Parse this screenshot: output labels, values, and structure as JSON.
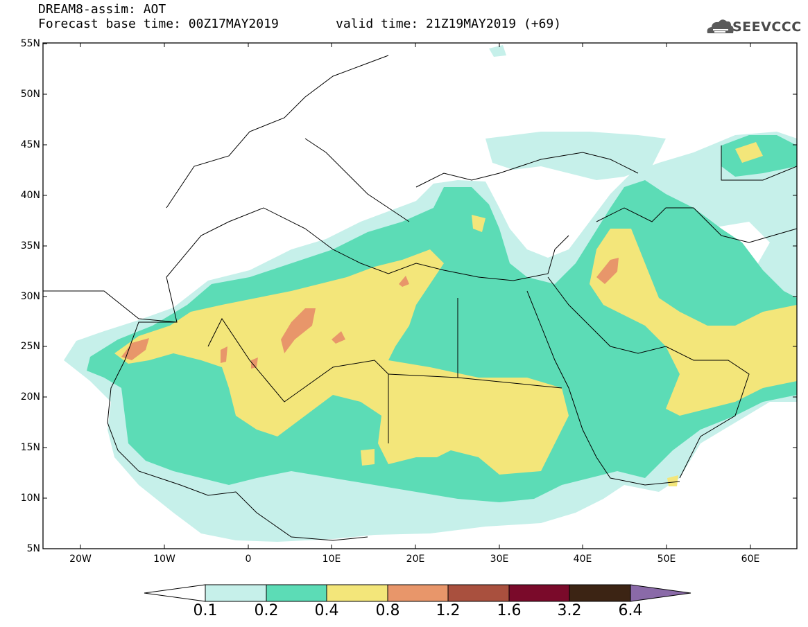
{
  "header": {
    "title": "DREAM8-assim: AOT",
    "base_time": "Forecast base time: 00Z17MAY2019",
    "valid_time": "valid time: 21Z19MAY2019 (+69)"
  },
  "logo": {
    "text": "SEEVCCC",
    "icon": "cloud-icon"
  },
  "map": {
    "projection": "latitude-longitude",
    "lon_range": [
      -25,
      65
    ],
    "lat_range": [
      5,
      55
    ],
    "lat_labels": [
      "55N",
      "50N",
      "45N",
      "40N",
      "35N",
      "30N",
      "25N",
      "20N",
      "15N",
      "10N",
      "5N"
    ],
    "lon_labels": [
      "20W",
      "10W",
      "0",
      "10E",
      "20E",
      "30E",
      "40E",
      "50E",
      "60E"
    ]
  },
  "colorbar": {
    "labels": [
      "0.1",
      "0.2",
      "0.4",
      "0.8",
      "1.2",
      "1.6",
      "3.2",
      "6.4"
    ],
    "colors": [
      "#ffffff",
      "#c6f0ea",
      "#5cdcb6",
      "#f3e67a",
      "#e8966a",
      "#a9503e",
      "#7a0a2a",
      "#3c2414",
      "#8a6aa8"
    ]
  }
}
